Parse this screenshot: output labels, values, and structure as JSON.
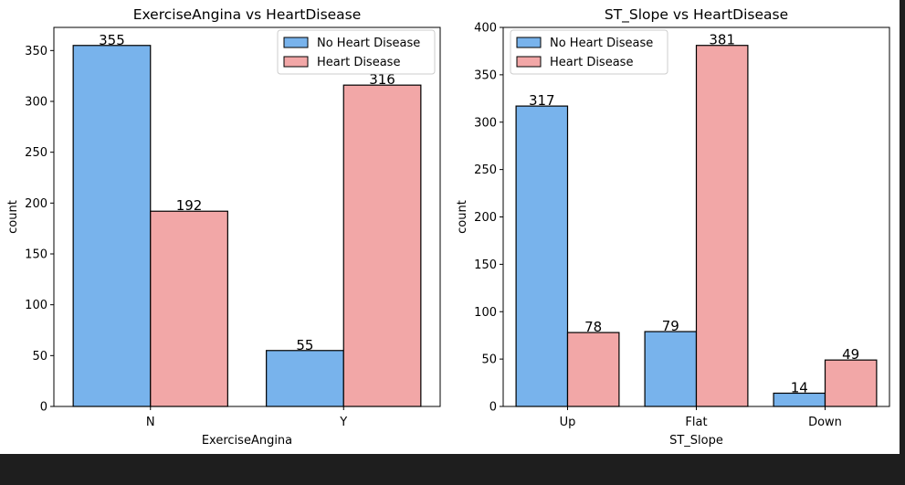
{
  "chart_data": [
    {
      "type": "bar",
      "title": "ExerciseAngina vs HeartDisease",
      "xlabel": "ExerciseAngina",
      "ylabel": "count",
      "categories": [
        "N",
        "Y"
      ],
      "series": [
        {
          "name": "No Heart Disease",
          "values": [
            355,
            55
          ],
          "color": "#78b3ec"
        },
        {
          "name": "Heart Disease",
          "values": [
            192,
            316
          ],
          "color": "#f2a7a7"
        }
      ],
      "ylim": [
        0,
        372.75
      ],
      "yticks": [
        0,
        50,
        100,
        150,
        200,
        250,
        300,
        350
      ],
      "legend": "top-right",
      "grid": false
    },
    {
      "type": "bar",
      "title": "ST_Slope vs HeartDisease",
      "xlabel": "ST_Slope",
      "ylabel": "count",
      "categories": [
        "Up",
        "Flat",
        "Down"
      ],
      "series": [
        {
          "name": "No Heart Disease",
          "values": [
            317,
            79,
            14
          ],
          "color": "#78b3ec"
        },
        {
          "name": "Heart Disease",
          "values": [
            78,
            381,
            49
          ],
          "color": "#f2a7a7"
        }
      ],
      "ylim": [
        0,
        400
      ],
      "yticks": [
        0,
        50,
        100,
        150,
        200,
        250,
        300,
        350,
        400
      ],
      "legend": "top-left",
      "grid": false
    }
  ]
}
